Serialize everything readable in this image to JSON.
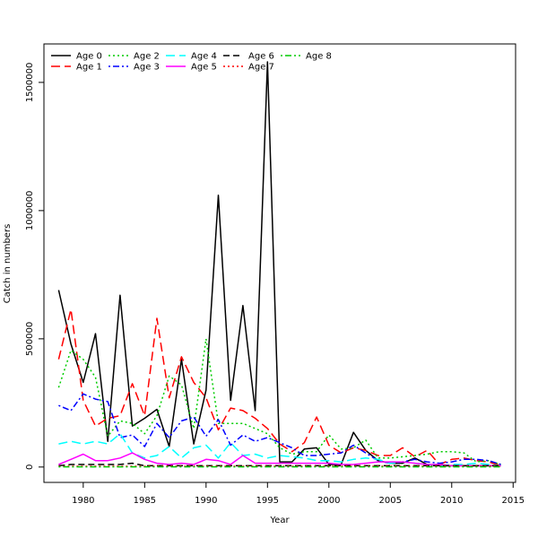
{
  "chart_data": {
    "type": "line",
    "xlabel": "Year",
    "ylabel": "Catch in numbers",
    "xlim": [
      1976.8,
      2015.2
    ],
    "ylim": [
      -60000,
      1650000
    ],
    "xticks": [
      1980,
      1985,
      1990,
      1995,
      2000,
      2005,
      2010,
      2015
    ],
    "xtick_labels": [
      "1980",
      "1985",
      "1990",
      "1995",
      "2000",
      "2005",
      "2010",
      "2015"
    ],
    "yticks": [
      0,
      500000,
      1000000,
      1500000
    ],
    "ytick_labels": [
      "0",
      "500000",
      "1000000",
      "1500000"
    ],
    "grid": false,
    "legend_position": "top-left",
    "x": [
      1978,
      1979,
      1980,
      1981,
      1982,
      1983,
      1984,
      1985,
      1986,
      1987,
      1988,
      1989,
      1990,
      1991,
      1992,
      1993,
      1994,
      1995,
      1996,
      1997,
      1998,
      1999,
      2000,
      2001,
      2002,
      2003,
      2004,
      2005,
      2006,
      2007,
      2008,
      2009,
      2010,
      2011,
      2012,
      2013,
      2014
    ],
    "series": [
      {
        "name": "Age 0",
        "color": "#000000",
        "dash": "solid",
        "values": [
          690000,
          480000,
          330000,
          520000,
          100000,
          670000,
          160000,
          190000,
          225000,
          80000,
          420000,
          90000,
          300000,
          1060000,
          260000,
          630000,
          220000,
          1580000,
          20000,
          20000,
          70000,
          75000,
          10000,
          10000,
          135000,
          65000,
          25000,
          15000,
          15000,
          35000,
          10000,
          5000,
          5000,
          5000,
          5000,
          5000,
          5000
        ]
      },
      {
        "name": "Age 1",
        "color": "#ff0000",
        "dash": "longdash",
        "values": [
          420000,
          615000,
          260000,
          160000,
          190000,
          200000,
          325000,
          200000,
          580000,
          270000,
          430000,
          330000,
          270000,
          145000,
          230000,
          220000,
          190000,
          150000,
          90000,
          60000,
          95000,
          195000,
          85000,
          55000,
          75000,
          65000,
          45000,
          45000,
          75000,
          40000,
          65000,
          10000,
          30000,
          35000,
          25000,
          20000,
          5000
        ]
      },
      {
        "name": "Age 2",
        "color": "#00cc00",
        "dash": "dotted",
        "values": [
          310000,
          455000,
          420000,
          350000,
          120000,
          180000,
          170000,
          130000,
          200000,
          355000,
          320000,
          150000,
          500000,
          170000,
          170000,
          170000,
          150000,
          130000,
          75000,
          50000,
          60000,
          60000,
          125000,
          70000,
          75000,
          105000,
          35000,
          35000,
          40000,
          45000,
          50000,
          60000,
          60000,
          55000,
          20000,
          25000,
          10000
        ]
      },
      {
        "name": "Age 3",
        "color": "#0000ff",
        "dash": "dotdash",
        "values": [
          240000,
          220000,
          285000,
          265000,
          255000,
          115000,
          125000,
          80000,
          170000,
          115000,
          180000,
          195000,
          120000,
          185000,
          85000,
          125000,
          100000,
          115000,
          95000,
          75000,
          45000,
          45000,
          50000,
          55000,
          85000,
          55000,
          25000,
          15000,
          20000,
          30000,
          20000,
          15000,
          20000,
          30000,
          30000,
          25000,
          10000
        ]
      },
      {
        "name": "Age 4",
        "color": "#00ffff",
        "dash": "longdash",
        "values": [
          90000,
          100000,
          90000,
          100000,
          90000,
          130000,
          55000,
          35000,
          45000,
          80000,
          35000,
          75000,
          85000,
          35000,
          95000,
          45000,
          50000,
          35000,
          45000,
          40000,
          35000,
          25000,
          25000,
          20000,
          30000,
          35000,
          30000,
          15000,
          20000,
          15000,
          10000,
          5000,
          10000,
          10000,
          15000,
          10000,
          5000
        ]
      },
      {
        "name": "Age 5",
        "color": "#ff00ff",
        "dash": "solid",
        "values": [
          10000,
          30000,
          50000,
          25000,
          25000,
          35000,
          55000,
          30000,
          15000,
          10000,
          15000,
          10000,
          30000,
          25000,
          10000,
          45000,
          15000,
          15000,
          15000,
          15000,
          15000,
          15000,
          15000,
          10000,
          10000,
          15000,
          20000,
          20000,
          20000,
          15000,
          10000,
          10000,
          5000,
          5000,
          5000,
          5000,
          5000
        ]
      },
      {
        "name": "Age 6",
        "color": "#000000",
        "dash": "dashed",
        "values": [
          5000,
          10000,
          10000,
          10000,
          10000,
          10000,
          15000,
          5000,
          5000,
          5000,
          5000,
          5000,
          5000,
          5000,
          5000,
          5000,
          5000,
          5000,
          5000,
          5000,
          5000,
          5000,
          5000,
          5000,
          5000,
          5000,
          5000,
          5000,
          5000,
          5000,
          5000,
          5000,
          5000,
          5000,
          5000,
          5000,
          5000
        ]
      },
      {
        "name": "Age 7",
        "color": "#ff0000",
        "dash": "dotted",
        "values": [
          2000,
          3000,
          3000,
          3000,
          3000,
          3000,
          3000,
          3000,
          3000,
          3000,
          3000,
          3000,
          3000,
          3000,
          3000,
          3000,
          3000,
          3000,
          3000,
          3000,
          3000,
          3000,
          3000,
          3000,
          3000,
          3000,
          3000,
          3000,
          3000,
          3000,
          3000,
          3000,
          3000,
          3000,
          3000,
          3000,
          3000
        ]
      },
      {
        "name": "Age 8",
        "color": "#00cc00",
        "dash": "dotdash",
        "values": [
          1000,
          1000,
          1000,
          1000,
          1000,
          1000,
          1000,
          1000,
          1000,
          1000,
          1000,
          1000,
          1000,
          1000,
          1000,
          1000,
          1000,
          1000,
          1000,
          1000,
          1000,
          1000,
          1000,
          1000,
          1000,
          1000,
          1000,
          1000,
          1000,
          1000,
          1000,
          1000,
          1000,
          1000,
          1000,
          1000,
          1000
        ]
      }
    ]
  }
}
